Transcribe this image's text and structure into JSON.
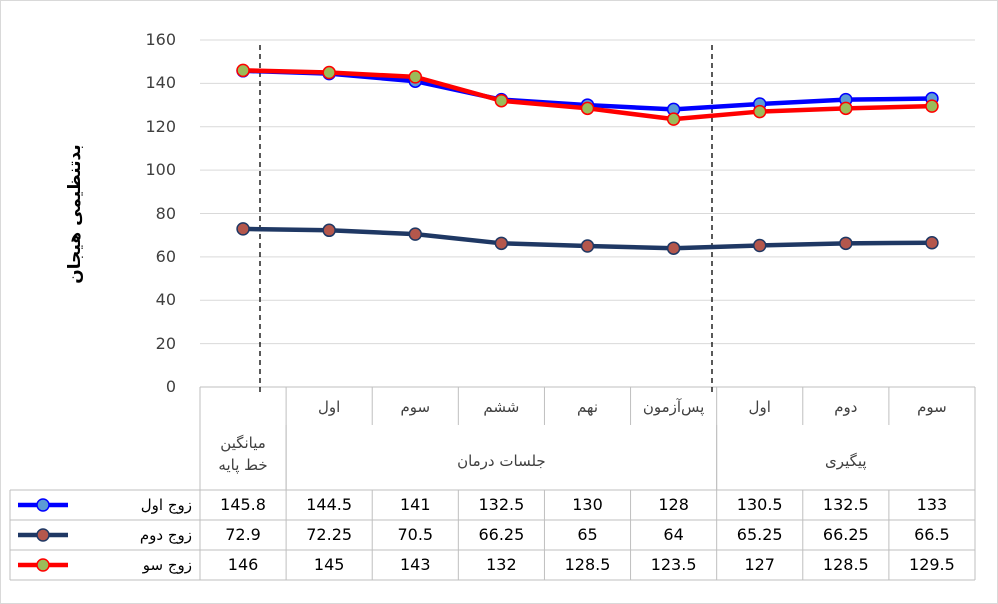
{
  "chart_data": {
    "type": "line",
    "y_axis_title": "بدتنظیمی هیجان",
    "categories": [
      null,
      "اول",
      "سوم",
      "ششم",
      "نهم",
      "پس‌آزمون",
      "اول",
      "دوم",
      "سوم"
    ],
    "category_groups": [
      "میانگین خط پایه",
      "جلسات درمان",
      null,
      null,
      null,
      null,
      "پیگیری",
      null,
      null
    ],
    "ylim": [
      0,
      160
    ],
    "yticks": [
      0,
      20,
      40,
      60,
      80,
      100,
      120,
      140,
      160
    ],
    "grid": true,
    "series": [
      {
        "name": "زوج اول",
        "color": "#0000ff",
        "marker_color": "#5b9bd5",
        "values": [
          145.8,
          144.5,
          141,
          132.5,
          130,
          128,
          130.5,
          132.5,
          133
        ]
      },
      {
        "name": "زوج دوم",
        "color": "#1f3864",
        "marker_color": "#b4574c",
        "values": [
          72.9,
          72.25,
          70.5,
          66.25,
          65,
          64,
          65.25,
          66.25,
          66.5
        ]
      },
      {
        "name": "زوج سو",
        "color": "#ff0000",
        "marker_color": "#9bbb59",
        "values": [
          146,
          145,
          143,
          132,
          128.5,
          123.5,
          127,
          128.5,
          129.5
        ]
      }
    ]
  }
}
